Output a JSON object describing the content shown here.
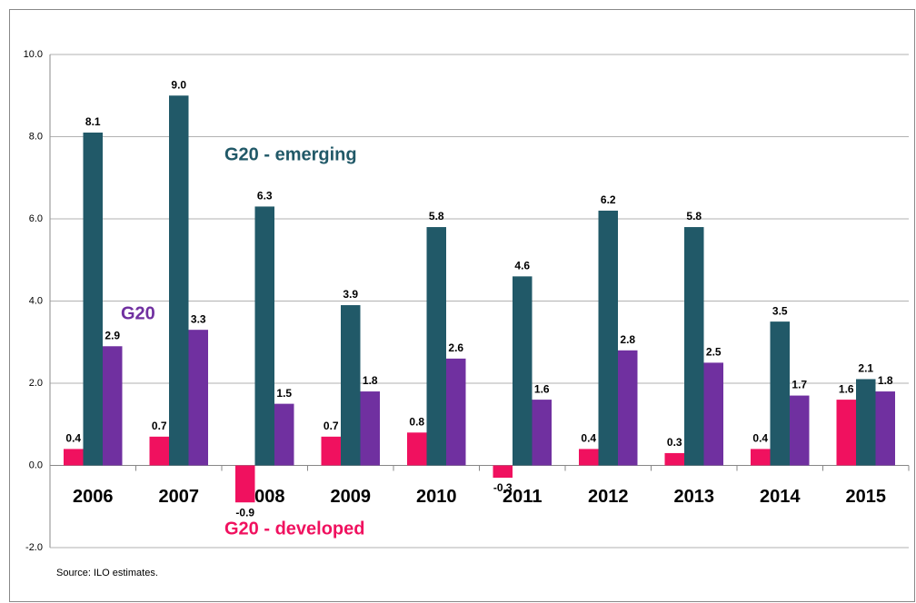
{
  "chart_data": {
    "type": "bar",
    "categories": [
      "2006",
      "2007",
      "2008",
      "2009",
      "2010",
      "2011",
      "2012",
      "2013",
      "2014",
      "2015"
    ],
    "series": [
      {
        "name": "G20 - developed",
        "color": "#f0115f",
        "values": [
          0.4,
          0.7,
          -0.9,
          0.7,
          0.8,
          -0.3,
          0.4,
          0.3,
          0.4,
          1.6
        ],
        "value_labels": [
          "0.4",
          "0.7",
          "-0.9",
          "0.7",
          "0.8",
          "-0.3",
          "0.4",
          "0.3",
          "0.4",
          "1.6"
        ]
      },
      {
        "name": "G20 - emerging",
        "color": "#215968",
        "values": [
          8.1,
          9.0,
          6.3,
          3.9,
          5.8,
          4.6,
          6.2,
          5.8,
          3.5,
          2.1
        ],
        "value_labels": [
          "8.1",
          "9.0",
          "6.3",
          "3.9",
          "5.8",
          "4.6",
          "6.2",
          "5.8",
          "3.5",
          "2.1"
        ]
      },
      {
        "name": "G20",
        "color": "#7030a0",
        "values": [
          2.9,
          3.3,
          1.5,
          1.8,
          2.6,
          1.6,
          2.8,
          2.5,
          1.7,
          1.8
        ],
        "value_labels": [
          "2.9",
          "3.3",
          "1.5",
          "1.8",
          "2.6",
          "1.6",
          "2.8",
          "2.5",
          "1.7",
          "1.8"
        ]
      }
    ],
    "ylim": [
      -2,
      10
    ],
    "yticks": [
      {
        "value": -2,
        "label": "-2.0"
      },
      {
        "value": 0,
        "label": "0.0"
      },
      {
        "value": 2,
        "label": "2.0"
      },
      {
        "value": 4,
        "label": "4.0"
      },
      {
        "value": 6,
        "label": "6.0"
      },
      {
        "value": 8,
        "label": "8.0"
      },
      {
        "value": 10,
        "label": "10.0"
      }
    ],
    "grid": true,
    "source": "Source: ILO estimates."
  }
}
